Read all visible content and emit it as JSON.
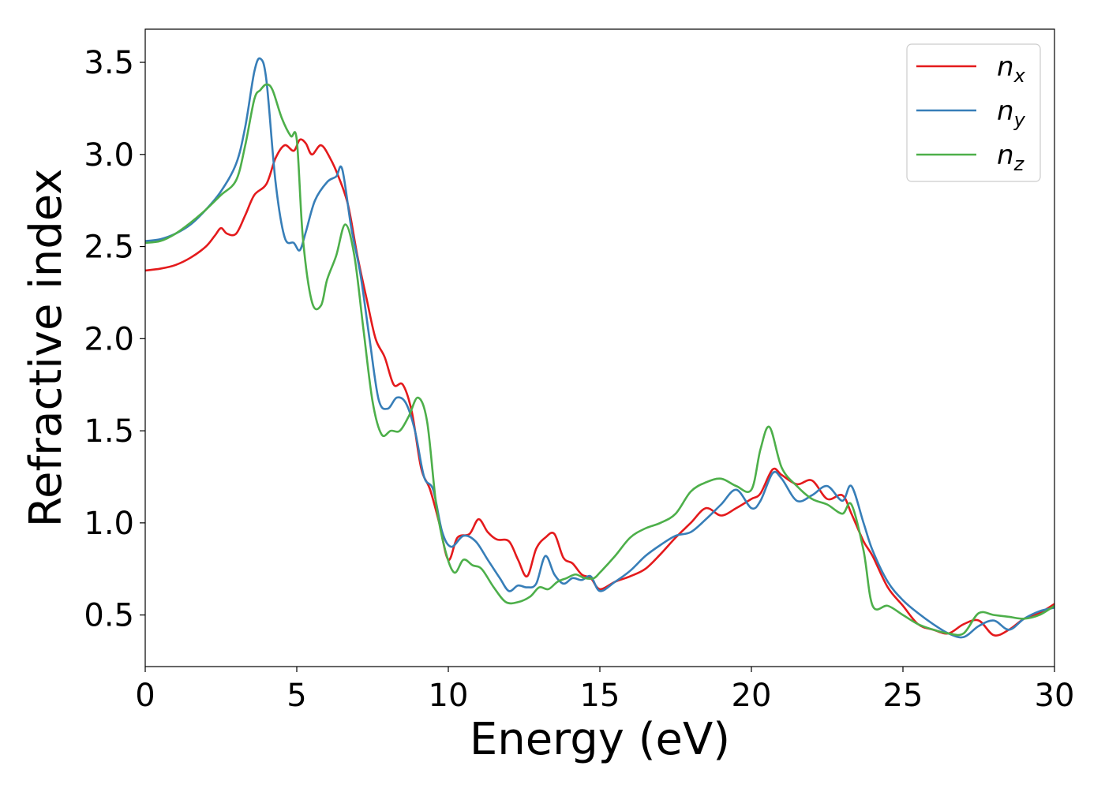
{
  "chart_data": {
    "type": "line",
    "xlabel": "Energy (eV)",
    "ylabel": "Refractive index",
    "xlim": [
      0,
      30
    ],
    "ylim": [
      0.22,
      3.68
    ],
    "xticks": [
      0,
      5,
      10,
      15,
      20,
      25,
      30
    ],
    "xtick_labels": [
      "0",
      "5",
      "10",
      "15",
      "20",
      "25",
      "30"
    ],
    "yticks": [
      0.5,
      1.0,
      1.5,
      2.0,
      2.5,
      3.0,
      3.5
    ],
    "ytick_labels": [
      "0.5",
      "1.0",
      "1.5",
      "2.0",
      "2.5",
      "3.0",
      "3.5"
    ],
    "grid": false,
    "legend_position": "top-right",
    "series": [
      {
        "name": "n_x",
        "legend_base": "n",
        "legend_sub": "x",
        "color": "#e41a1c",
        "x": [
          0,
          0.5,
          1,
          1.5,
          2,
          2.3,
          2.5,
          2.7,
          3.0,
          3.3,
          3.6,
          4.0,
          4.3,
          4.6,
          4.9,
          5.1,
          5.3,
          5.5,
          5.8,
          6.1,
          6.4,
          6.7,
          7.0,
          7.3,
          7.6,
          7.9,
          8.2,
          8.5,
          8.8,
          9.1,
          9.4,
          9.7,
          10.0,
          10.3,
          10.7,
          11.0,
          11.3,
          11.6,
          12.0,
          12.3,
          12.6,
          12.9,
          13.2,
          13.5,
          13.8,
          14.1,
          14.4,
          14.7,
          15.0,
          15.5,
          16.0,
          16.5,
          17.0,
          17.5,
          18.0,
          18.5,
          19.0,
          19.5,
          20.0,
          20.3,
          20.7,
          21.0,
          21.5,
          22.0,
          22.5,
          23.0,
          23.3,
          23.7,
          24.0,
          24.5,
          25.0,
          25.5,
          26.0,
          26.5,
          27.0,
          27.5,
          28.0,
          28.5,
          29.0,
          29.5,
          30.0
        ],
        "y": [
          2.37,
          2.38,
          2.4,
          2.44,
          2.5,
          2.56,
          2.6,
          2.57,
          2.57,
          2.67,
          2.78,
          2.84,
          2.98,
          3.05,
          3.02,
          3.08,
          3.06,
          3.0,
          3.05,
          2.98,
          2.87,
          2.72,
          2.45,
          2.22,
          2.0,
          1.9,
          1.75,
          1.75,
          1.6,
          1.3,
          1.18,
          1.0,
          0.8,
          0.92,
          0.94,
          1.02,
          0.95,
          0.91,
          0.9,
          0.8,
          0.71,
          0.86,
          0.92,
          0.94,
          0.81,
          0.78,
          0.72,
          0.7,
          0.64,
          0.68,
          0.71,
          0.75,
          0.83,
          0.92,
          1.0,
          1.08,
          1.04,
          1.08,
          1.13,
          1.16,
          1.29,
          1.26,
          1.21,
          1.23,
          1.13,
          1.15,
          1.05,
          0.9,
          0.82,
          0.65,
          0.55,
          0.45,
          0.42,
          0.4,
          0.45,
          0.47,
          0.39,
          0.42,
          0.48,
          0.51,
          0.56
        ]
      },
      {
        "name": "n_y",
        "legend_base": "n",
        "legend_sub": "y",
        "color": "#377eb8",
        "x": [
          0,
          0.5,
          1,
          1.5,
          2,
          2.5,
          3.0,
          3.3,
          3.6,
          3.8,
          4.0,
          4.3,
          4.6,
          4.9,
          5.1,
          5.3,
          5.6,
          6.0,
          6.3,
          6.5,
          6.8,
          7.1,
          7.4,
          7.7,
          8.0,
          8.3,
          8.6,
          8.9,
          9.2,
          9.5,
          9.8,
          10.1,
          10.5,
          10.9,
          11.3,
          11.7,
          12.0,
          12.3,
          12.6,
          12.9,
          13.2,
          13.5,
          13.8,
          14.1,
          14.4,
          14.7,
          15.0,
          15.5,
          16.0,
          16.5,
          17.0,
          17.5,
          18.0,
          18.5,
          19.0,
          19.5,
          20.0,
          20.3,
          20.7,
          21.0,
          21.5,
          22.0,
          22.5,
          23.0,
          23.3,
          23.7,
          24.0,
          24.5,
          25.0,
          25.5,
          26.0,
          26.5,
          27.0,
          27.5,
          28.0,
          28.5,
          29.0,
          29.5,
          30.0
        ],
        "y": [
          2.53,
          2.54,
          2.57,
          2.62,
          2.7,
          2.8,
          2.95,
          3.15,
          3.45,
          3.52,
          3.4,
          2.85,
          2.55,
          2.52,
          2.48,
          2.58,
          2.75,
          2.85,
          2.88,
          2.92,
          2.6,
          2.35,
          2.0,
          1.67,
          1.62,
          1.68,
          1.65,
          1.5,
          1.25,
          1.18,
          0.95,
          0.87,
          0.93,
          0.9,
          0.8,
          0.7,
          0.63,
          0.66,
          0.65,
          0.67,
          0.82,
          0.72,
          0.67,
          0.7,
          0.69,
          0.71,
          0.63,
          0.68,
          0.74,
          0.82,
          0.88,
          0.93,
          0.95,
          1.02,
          1.1,
          1.18,
          1.08,
          1.12,
          1.27,
          1.24,
          1.12,
          1.15,
          1.2,
          1.12,
          1.2,
          1.0,
          0.85,
          0.68,
          0.58,
          0.51,
          0.45,
          0.4,
          0.38,
          0.44,
          0.47,
          0.42,
          0.48,
          0.52,
          0.54
        ]
      },
      {
        "name": "n_z",
        "legend_base": "n",
        "legend_sub": "z",
        "color": "#4daf4a",
        "x": [
          0,
          0.5,
          1,
          1.5,
          2,
          2.5,
          3.0,
          3.3,
          3.6,
          3.8,
          4.0,
          4.2,
          4.5,
          4.8,
          5.0,
          5.2,
          5.5,
          5.8,
          6.0,
          6.3,
          6.6,
          6.9,
          7.2,
          7.5,
          7.8,
          8.1,
          8.4,
          8.7,
          9.0,
          9.3,
          9.6,
          9.9,
          10.2,
          10.5,
          10.8,
          11.1,
          11.5,
          11.9,
          12.3,
          12.7,
          13.0,
          13.3,
          13.6,
          13.9,
          14.2,
          14.5,
          14.8,
          15.0,
          15.5,
          16.0,
          16.5,
          17.0,
          17.5,
          18.0,
          18.5,
          19.0,
          19.5,
          20.0,
          20.3,
          20.6,
          21.0,
          21.5,
          22.0,
          22.5,
          23.0,
          23.3,
          23.7,
          24.0,
          24.5,
          25.0,
          25.5,
          26.0,
          26.5,
          27.0,
          27.5,
          28.0,
          28.5,
          29.0,
          29.5,
          30.0
        ],
        "y": [
          2.52,
          2.53,
          2.57,
          2.63,
          2.7,
          2.78,
          2.86,
          3.05,
          3.3,
          3.35,
          3.38,
          3.35,
          3.2,
          3.1,
          3.08,
          2.55,
          2.2,
          2.18,
          2.32,
          2.45,
          2.62,
          2.45,
          2.05,
          1.66,
          1.48,
          1.5,
          1.5,
          1.58,
          1.68,
          1.55,
          1.1,
          0.85,
          0.73,
          0.8,
          0.77,
          0.75,
          0.65,
          0.57,
          0.57,
          0.6,
          0.65,
          0.64,
          0.68,
          0.7,
          0.72,
          0.7,
          0.7,
          0.73,
          0.82,
          0.92,
          0.97,
          1.0,
          1.05,
          1.17,
          1.22,
          1.24,
          1.2,
          1.18,
          1.4,
          1.52,
          1.3,
          1.2,
          1.13,
          1.1,
          1.05,
          1.1,
          0.85,
          0.55,
          0.55,
          0.5,
          0.45,
          0.42,
          0.4,
          0.4,
          0.51,
          0.5,
          0.49,
          0.48,
          0.5,
          0.55
        ]
      }
    ]
  }
}
